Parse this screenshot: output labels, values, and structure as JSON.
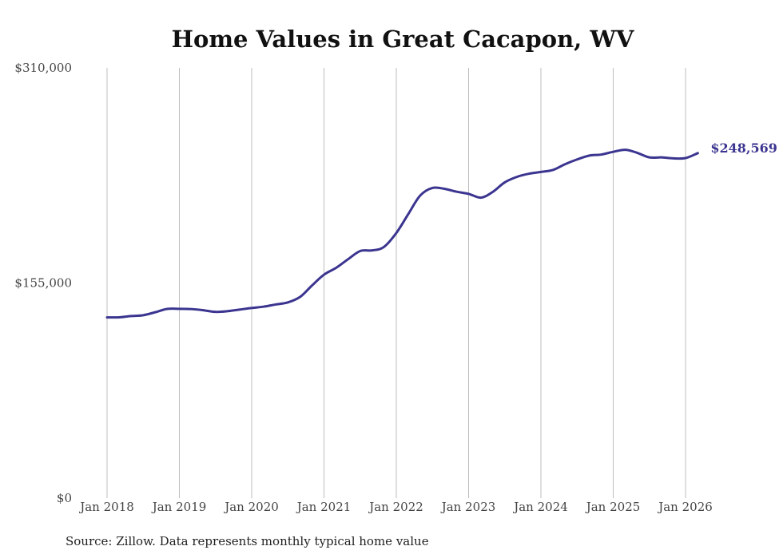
{
  "chart_data": {
    "type": "line",
    "title": "Home Values in Great Cacapon, WV",
    "xlabel": "",
    "ylabel": "",
    "ylim": [
      0,
      310000
    ],
    "yticks": [
      {
        "value": 0,
        "label": "$0"
      },
      {
        "value": 155000,
        "label": "$155,000"
      },
      {
        "value": 310000,
        "label": "$310,000"
      }
    ],
    "xticks": [
      {
        "x": 2018.0,
        "label": "Jan 2018"
      },
      {
        "x": 2019.0,
        "label": "Jan 2019"
      },
      {
        "x": 2020.0,
        "label": "Jan 2020"
      },
      {
        "x": 2021.0,
        "label": "Jan 2021"
      },
      {
        "x": 2022.0,
        "label": "Jan 2022"
      },
      {
        "x": 2023.0,
        "label": "Jan 2023"
      },
      {
        "x": 2024.0,
        "label": "Jan 2024"
      },
      {
        "x": 2025.0,
        "label": "Jan 2025"
      },
      {
        "x": 2026.0,
        "label": "Jan 2026"
      }
    ],
    "xlim": [
      2017.5,
      2026.6
    ],
    "grid": "vertical",
    "series": [
      {
        "name": "Typical home value",
        "color": "#3b3590",
        "points": [
          [
            2018.0,
            130200
          ],
          [
            2018.17,
            130300
          ],
          [
            2018.33,
            131200
          ],
          [
            2018.5,
            131800
          ],
          [
            2018.67,
            134000
          ],
          [
            2018.83,
            136300
          ],
          [
            2019.0,
            136400
          ],
          [
            2019.17,
            136200
          ],
          [
            2019.33,
            135400
          ],
          [
            2019.5,
            134200
          ],
          [
            2019.67,
            134700
          ],
          [
            2019.83,
            135800
          ],
          [
            2020.0,
            137000
          ],
          [
            2020.17,
            138000
          ],
          [
            2020.33,
            139500
          ],
          [
            2020.5,
            141000
          ],
          [
            2020.67,
            145000
          ],
          [
            2020.83,
            153000
          ],
          [
            2021.0,
            161000
          ],
          [
            2021.17,
            166000
          ],
          [
            2021.33,
            172000
          ],
          [
            2021.5,
            178000
          ],
          [
            2021.67,
            178500
          ],
          [
            2021.83,
            181000
          ],
          [
            2022.0,
            191000
          ],
          [
            2022.17,
            205000
          ],
          [
            2022.33,
            218000
          ],
          [
            2022.5,
            223500
          ],
          [
            2022.67,
            222800
          ],
          [
            2022.83,
            220800
          ],
          [
            2023.0,
            219200
          ],
          [
            2023.17,
            216500
          ],
          [
            2023.33,
            220500
          ],
          [
            2023.5,
            227500
          ],
          [
            2023.67,
            231500
          ],
          [
            2023.83,
            233700
          ],
          [
            2024.0,
            235000
          ],
          [
            2024.17,
            236500
          ],
          [
            2024.33,
            240500
          ],
          [
            2024.5,
            244000
          ],
          [
            2024.67,
            246800
          ],
          [
            2024.83,
            247500
          ],
          [
            2025.0,
            249500
          ],
          [
            2025.17,
            251000
          ],
          [
            2025.33,
            248800
          ],
          [
            2025.5,
            245500
          ],
          [
            2025.67,
            245500
          ],
          [
            2025.83,
            244800
          ],
          [
            2026.0,
            245000
          ],
          [
            2026.17,
            248569
          ]
        ],
        "end_label": "$248,569"
      }
    ]
  },
  "footer": {
    "source": "Source: Zillow. Data represents monthly typical home value"
  }
}
